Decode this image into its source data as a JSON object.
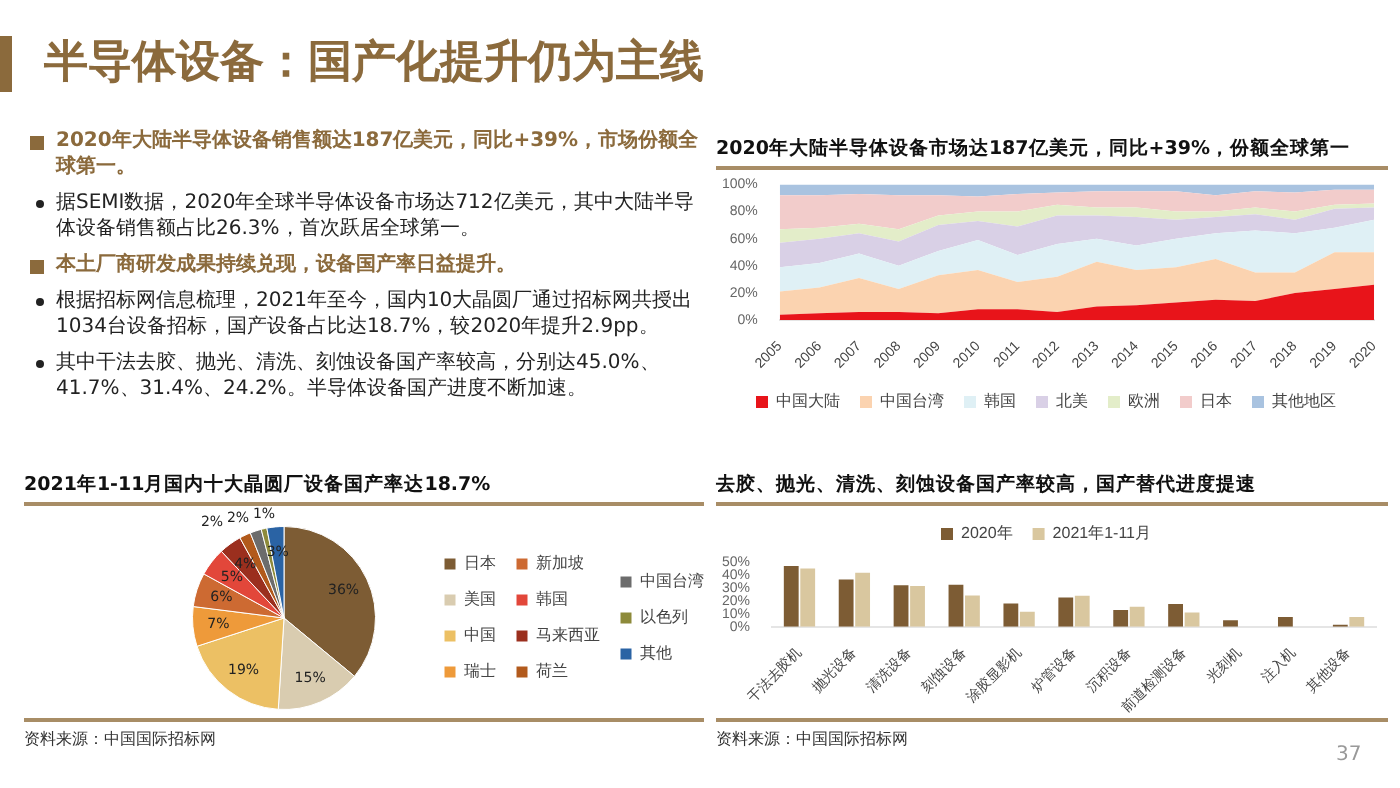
{
  "chart_data": [
    {
      "type": "other",
      "title": "半导体设备：国产化提升仍为主线",
      "annotations": [
        "2020年大陆半导体设备销售额达187亿美元，同比+39%，市场份额全球第一。",
        "据SEMI数据，2020年全球半导体设备市场达712亿美元，其中大陆半导体设备销售额占比26.3%，首次跃居全球第一。",
        "本土厂商研发成果持续兑现，设备国产率日益提升。",
        "根据招标网信息梳理，2021年至今，国内10大晶圆厂通过招标网共授出1034台设备招标，国产设备占比达18.7%，较2020年提升2.9pp。",
        "其中干法去胶、抛光、清洗、刻蚀设备国产率较高，分别达45.0%、41.7%、31.4%、24.2%。半导体设备国产进度不断加速。",
        "37"
      ]
    },
    {
      "type": "area",
      "title": "2020年大陆半导体设备市场达187亿美元，同比+39%，份额全球第一",
      "stacked": true,
      "legend": "bottom",
      "categories": [
        "2005",
        "2006",
        "2007",
        "2008",
        "2009",
        "2010",
        "2011",
        "2012",
        "2013",
        "2014",
        "2015",
        "2016",
        "2017",
        "2018",
        "2019",
        "2020"
      ],
      "ylim": [
        0,
        100
      ],
      "yticks": [
        {
          "value": 0,
          "label": "0%"
        },
        {
          "value": 20,
          "label": "20%"
        },
        {
          "value": 40,
          "label": "40%"
        },
        {
          "value": 60,
          "label": "60%"
        },
        {
          "value": 80,
          "label": "80%"
        },
        {
          "value": 100,
          "label": "100%"
        }
      ],
      "series": [
        {
          "name": "中国大陆",
          "color": "#e8141a",
          "values": [
            4,
            5,
            6,
            6,
            5,
            8,
            8,
            6,
            10,
            11,
            13,
            15,
            14,
            20,
            23,
            26
          ]
        },
        {
          "name": "中国台湾",
          "color": "#fbd3b0",
          "values": [
            17,
            19,
            25,
            17,
            28,
            29,
            20,
            26,
            33,
            26,
            26,
            30,
            21,
            15,
            27,
            24
          ]
        },
        {
          "name": "韩国",
          "color": "#dff0f5",
          "values": [
            18,
            18,
            18,
            17,
            18,
            22,
            20,
            24,
            17,
            18,
            21,
            19,
            31,
            29,
            18,
            24
          ]
        },
        {
          "name": "北美",
          "color": "#d9d0e6",
          "values": [
            18,
            18,
            15,
            18,
            19,
            14,
            21,
            21,
            17,
            21,
            14,
            12,
            12,
            10,
            14,
            9
          ]
        },
        {
          "name": "欧洲",
          "color": "#e3edc9",
          "values": [
            10,
            8,
            7,
            9,
            7,
            7,
            11,
            8,
            6,
            7,
            6,
            4,
            5,
            6,
            3,
            3
          ]
        },
        {
          "name": "日本",
          "color": "#f2cccb",
          "values": [
            25,
            24,
            22,
            25,
            15,
            11,
            13,
            9,
            12,
            12,
            15,
            12,
            12,
            14,
            11,
            10
          ]
        },
        {
          "name": "其他地区",
          "color": "#a9c3e0",
          "values": [
            8,
            8,
            7,
            8,
            8,
            9,
            7,
            6,
            5,
            5,
            5,
            8,
            5,
            6,
            4,
            4
          ]
        }
      ]
    },
    {
      "type": "pie",
      "title": "2021年1-11月国内十大晶圆厂设备国产率达18.7%",
      "legend": "right",
      "categories": [
        "日本",
        "美国",
        "中国",
        "瑞士",
        "新加坡",
        "韩国",
        "马来西亚",
        "荷兰",
        "中国台湾",
        "以色列",
        "其他"
      ],
      "values": [
        36,
        15,
        19,
        7,
        6,
        5,
        4,
        2,
        2,
        1,
        3
      ],
      "colors": [
        "#7d5c34",
        "#d9ccb0",
        "#ecc064",
        "#ee9a3a",
        "#cd6a32",
        "#e2473a",
        "#9b2f1e",
        "#b25a1c",
        "#6c6c6c",
        "#8d8a3a",
        "#2a63a4"
      ],
      "value_labels": [
        "36%",
        "15%",
        "19%",
        "7%",
        "6%",
        "5%",
        "4%",
        "2%",
        "2%",
        "1%",
        "3%"
      ],
      "annotations": [
        "资料来源：中国国际招标网"
      ]
    },
    {
      "type": "bar",
      "title": "去胶、抛光、清洗、刻蚀设备国产率较高，国产替代进度提速",
      "legend": "top",
      "categories": [
        "干法去胶机",
        "抛光设备",
        "清洗设备",
        "刻蚀设备",
        "涂胶显影机",
        "炉管设备",
        "沉积设备",
        "前道检测设备",
        "光刻机",
        "注入机",
        "其他设备"
      ],
      "ylim": [
        0,
        50
      ],
      "yticks": [
        {
          "value": 0,
          "label": "0%"
        },
        {
          "value": 10,
          "label": "10%"
        },
        {
          "value": 20,
          "label": "20%"
        },
        {
          "value": 30,
          "label": "30%"
        },
        {
          "value": 40,
          "label": "40%"
        },
        {
          "value": 50,
          "label": "50%"
        }
      ],
      "series": [
        {
          "name": "2020年",
          "color": "#7d5c34",
          "values": [
            47,
            36.5,
            32,
            32.5,
            18,
            22.5,
            13,
            17.5,
            5,
            7.5,
            1.5
          ]
        },
        {
          "name": "2021年1-11月",
          "color": "#d9c79f",
          "values": [
            45.0,
            41.7,
            31.4,
            24.2,
            11.5,
            24,
            15.5,
            11,
            null,
            null,
            7.5
          ]
        }
      ],
      "annotations": [
        "资料来源：中国国际招标网"
      ]
    }
  ]
}
